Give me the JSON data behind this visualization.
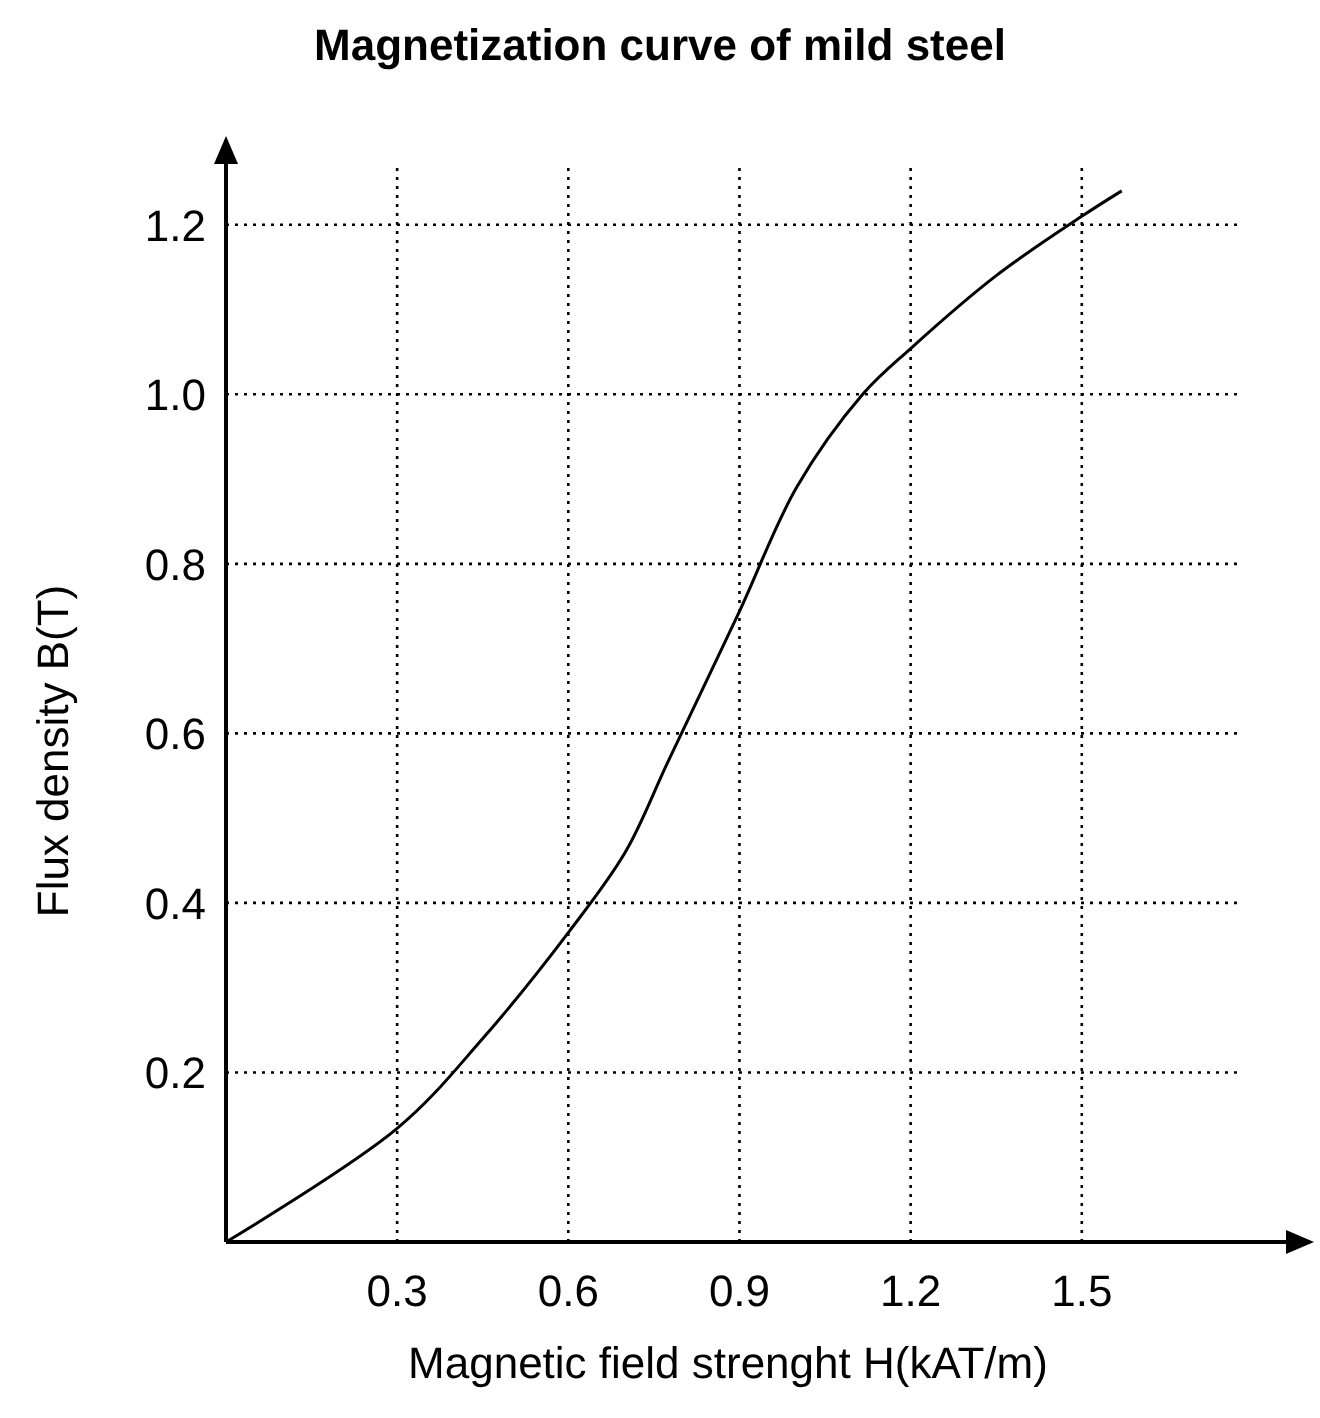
{
  "chart_data": {
    "type": "line",
    "title": "Magnetization curve of mild steel",
    "xlabel": "Magnetic field strenght H(kAT/m)",
    "ylabel": "Flux density B(T)",
    "series": [
      {
        "color": "#000000",
        "x": [
          0,
          0.3,
          0.45,
          0.6,
          0.7,
          0.775,
          0.9,
          1.0,
          1.116,
          1.2,
          1.35,
          1.5,
          1.57
        ],
        "values": [
          0,
          0.134,
          0.24,
          0.365,
          0.46,
          0.567,
          0.744,
          0.89,
          1.0,
          1.054,
          1.14,
          1.21,
          1.24
        ]
      }
    ],
    "xlim": [
      0,
      1.9
    ],
    "ylim": [
      0,
      1.3
    ],
    "xticks": [
      0.3,
      0.6,
      0.9,
      1.2,
      1.5
    ],
    "yticks": [
      0.2,
      0.4,
      0.6,
      0.8,
      {
        "value": 1,
        "label": "1.0"
      },
      1.2
    ],
    "grid": true,
    "line_style": "solid",
    "marker": "none"
  }
}
